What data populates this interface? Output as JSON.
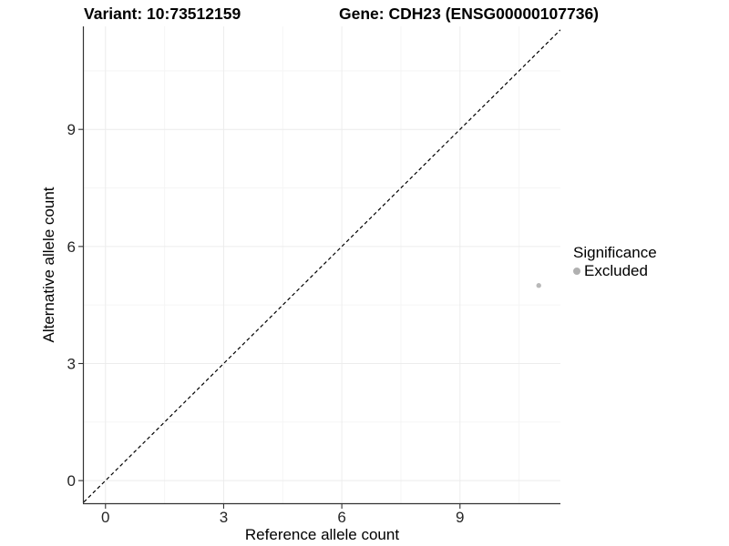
{
  "chart_data": {
    "type": "scatter",
    "title_left": "Variant: 10:73512159",
    "title_right": "Gene: CDH23 (ENSG00000107736)",
    "xlabel": "Reference allele count",
    "ylabel": "Alternative allele count",
    "x_ticks": [
      0,
      3,
      6,
      9
    ],
    "y_ticks": [
      0,
      3,
      6,
      9
    ],
    "x_minor_ticks": [
      1.5,
      4.5,
      7.5,
      10.5
    ],
    "y_minor_ticks": [
      1.5,
      4.5,
      7.5,
      10.5
    ],
    "xlim": [
      -0.55,
      11.55
    ],
    "ylim": [
      -0.58,
      11.64
    ],
    "grid": "major+minor",
    "points": [
      {
        "x": 11,
        "y": 5,
        "series": "Excluded"
      }
    ],
    "reference_line": {
      "type": "identity",
      "style": "dashed",
      "from": -0.55,
      "to": 11.55
    },
    "legend": {
      "position": "right",
      "title": "Significance",
      "entries": [
        {
          "label": "Excluded",
          "color": "#b0b0b0"
        }
      ]
    }
  },
  "colors": {
    "background": "#ffffff",
    "axis_line": "#333333",
    "tick_mark": "#333333",
    "tick_label": "#262626",
    "grid_major": "#ececec",
    "grid_minor": "#f5f5f5",
    "reference_line": "#000000",
    "point": "#b9b9b9",
    "legend_key": "#aaaaaa"
  }
}
